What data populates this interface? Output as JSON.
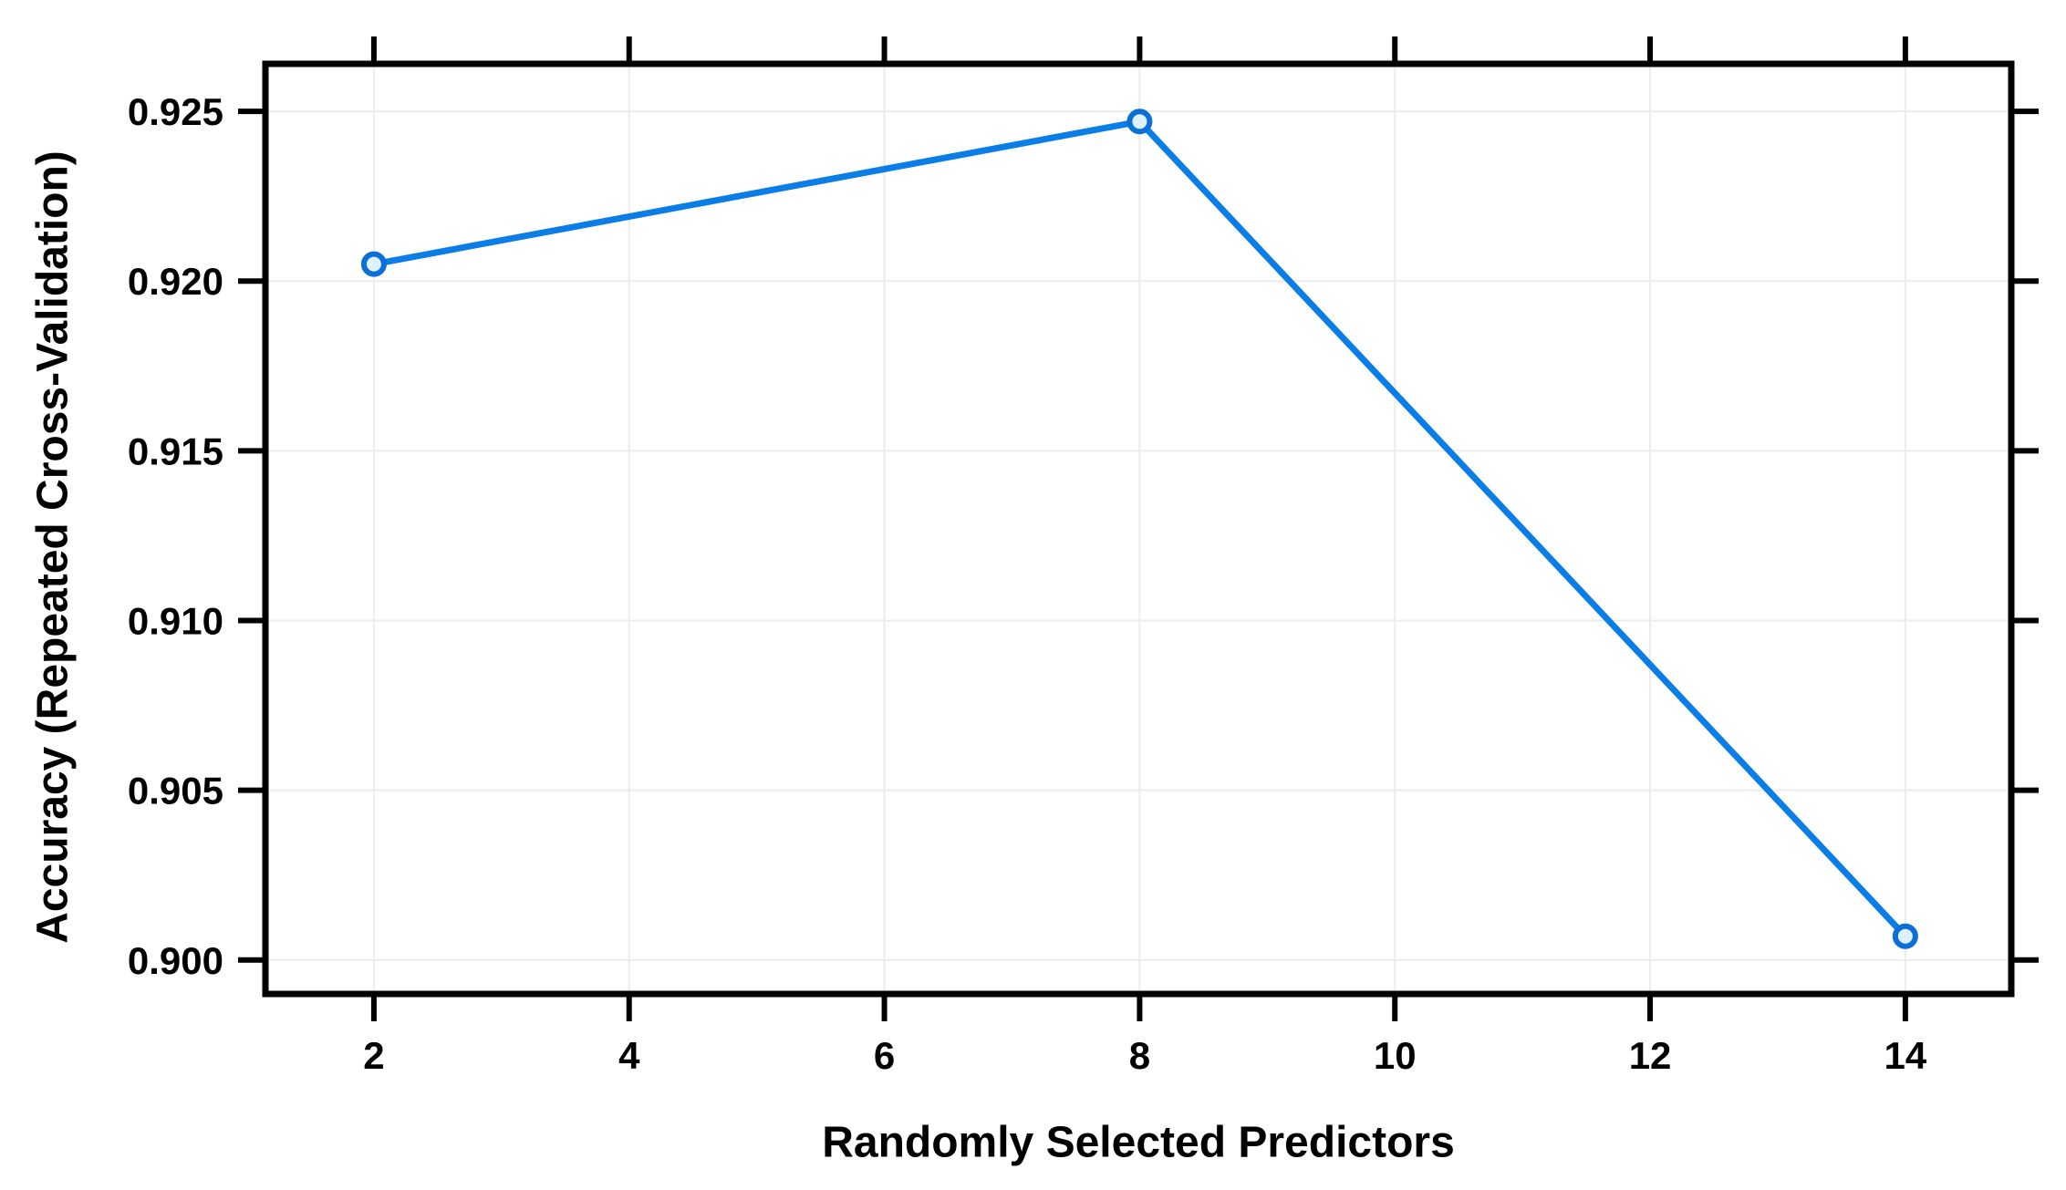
{
  "chart_data": {
    "type": "line",
    "title": "",
    "xlabel": "Randomly Selected Predictors",
    "ylabel": "Accuracy (Repeated Cross-Validation)",
    "x": [
      2,
      8,
      14
    ],
    "series": [
      {
        "name": "Accuracy (Repeated Cross-Validation)",
        "values": [
          0.9205,
          0.9247,
          0.9007
        ]
      }
    ],
    "x_ticks": [
      2,
      4,
      6,
      8,
      10,
      12,
      14
    ],
    "x_tick_labels": [
      "2",
      "4",
      "6",
      "8",
      "10",
      "12",
      "14"
    ],
    "y_ticks": [
      0.9,
      0.905,
      0.91,
      0.915,
      0.92,
      0.925
    ],
    "y_tick_labels": [
      "0.900",
      "0.905",
      "0.910",
      "0.915",
      "0.920",
      "0.925"
    ],
    "xlim": [
      1.15,
      14.83
    ],
    "ylim": [
      0.899,
      0.9264
    ],
    "grid": true,
    "legend_position": "none",
    "marker": "open-circle",
    "colors": {
      "line": "#0a7de6",
      "marker_stroke": "#0a6fd6",
      "marker_fill": "#dff0fe",
      "grid": "#eeece8",
      "axis": "#000000",
      "text": "#000000",
      "background": "#ffffff"
    }
  }
}
